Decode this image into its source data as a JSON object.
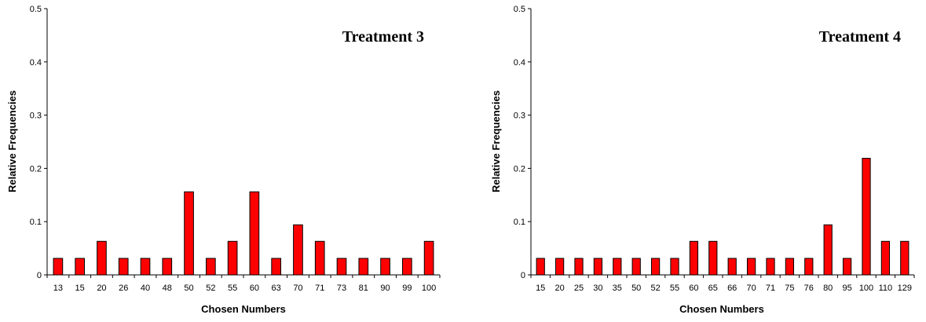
{
  "chart_data": [
    {
      "type": "bar",
      "title": "Treatment 3",
      "xlabel": "Chosen Numbers",
      "ylabel": "Relative Frequencies",
      "ylim": [
        0,
        0.5
      ],
      "yticks": [
        "0",
        "0.1",
        "0.2",
        "0.3",
        "0.4",
        "0.5"
      ],
      "categories": [
        "13",
        "15",
        "20",
        "26",
        "40",
        "48",
        "50",
        "52",
        "55",
        "60",
        "63",
        "70",
        "71",
        "73",
        "81",
        "90",
        "99",
        "100"
      ],
      "values": [
        0.031,
        0.031,
        0.063,
        0.031,
        0.031,
        0.031,
        0.156,
        0.031,
        0.063,
        0.156,
        0.031,
        0.094,
        0.063,
        0.031,
        0.031,
        0.031,
        0.031,
        0.063
      ],
      "bar_color": "#ff0000",
      "grid": false,
      "legend": "none"
    },
    {
      "type": "bar",
      "title": "Treatment 4",
      "xlabel": "Chosen Numbers",
      "ylabel": "Relative Frequencies",
      "ylim": [
        0,
        0.5
      ],
      "yticks": [
        "0",
        "0.1",
        "0.2",
        "0.3",
        "0.4",
        "0.5"
      ],
      "categories": [
        "15",
        "20",
        "25",
        "30",
        "35",
        "50",
        "52",
        "55",
        "60",
        "65",
        "66",
        "70",
        "71",
        "75",
        "76",
        "80",
        "95",
        "100",
        "110",
        "129"
      ],
      "values": [
        0.031,
        0.031,
        0.031,
        0.031,
        0.031,
        0.031,
        0.031,
        0.031,
        0.063,
        0.063,
        0.031,
        0.031,
        0.031,
        0.031,
        0.031,
        0.094,
        0.031,
        0.219,
        0.063,
        0.063
      ],
      "bar_color": "#ff0000",
      "grid": false,
      "legend": "none"
    }
  ]
}
